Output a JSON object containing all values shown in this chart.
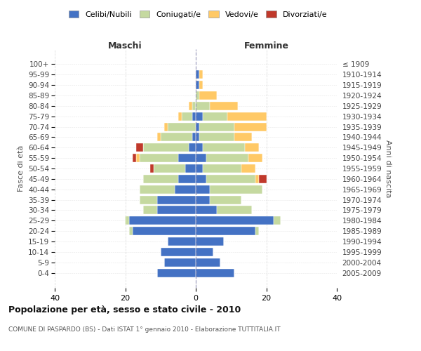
{
  "age_groups": [
    "0-4",
    "5-9",
    "10-14",
    "15-19",
    "20-24",
    "25-29",
    "30-34",
    "35-39",
    "40-44",
    "45-49",
    "50-54",
    "55-59",
    "60-64",
    "65-69",
    "70-74",
    "75-79",
    "80-84",
    "85-89",
    "90-94",
    "95-99",
    "100+"
  ],
  "birth_years": [
    "2005-2009",
    "2000-2004",
    "1995-1999",
    "1990-1994",
    "1985-1989",
    "1980-1984",
    "1975-1979",
    "1970-1974",
    "1965-1969",
    "1960-1964",
    "1955-1959",
    "1950-1954",
    "1945-1949",
    "1940-1944",
    "1935-1939",
    "1930-1934",
    "1925-1929",
    "1920-1924",
    "1915-1919",
    "1910-1914",
    "≤ 1909"
  ],
  "maschi": {
    "celibi": [
      11,
      9,
      10,
      8,
      18,
      19,
      11,
      11,
      6,
      5,
      3,
      5,
      2,
      1,
      0,
      1,
      0,
      0,
      0,
      0,
      0
    ],
    "coniugati": [
      0,
      0,
      0,
      0,
      1,
      1,
      4,
      5,
      10,
      10,
      9,
      11,
      13,
      9,
      8,
      3,
      1,
      0,
      0,
      0,
      0
    ],
    "vedovi": [
      0,
      0,
      0,
      0,
      0,
      0,
      0,
      0,
      0,
      0,
      0,
      1,
      0,
      1,
      1,
      1,
      1,
      0,
      0,
      0,
      0
    ],
    "divorziati": [
      0,
      0,
      0,
      0,
      0,
      0,
      0,
      0,
      0,
      0,
      1,
      1,
      2,
      0,
      0,
      0,
      0,
      0,
      0,
      0,
      0
    ]
  },
  "femmine": {
    "nubili": [
      11,
      7,
      5,
      8,
      17,
      22,
      6,
      4,
      4,
      3,
      2,
      3,
      2,
      1,
      1,
      2,
      0,
      0,
      1,
      1,
      0
    ],
    "coniugate": [
      0,
      0,
      0,
      0,
      1,
      2,
      10,
      9,
      15,
      14,
      11,
      12,
      12,
      10,
      10,
      7,
      4,
      1,
      0,
      0,
      0
    ],
    "vedove": [
      0,
      0,
      0,
      0,
      0,
      0,
      0,
      0,
      0,
      1,
      4,
      4,
      4,
      5,
      9,
      11,
      8,
      5,
      1,
      1,
      0
    ],
    "divorziate": [
      0,
      0,
      0,
      0,
      0,
      0,
      0,
      0,
      0,
      2,
      0,
      0,
      0,
      0,
      0,
      0,
      0,
      0,
      0,
      0,
      0
    ]
  },
  "colors": {
    "celibi": "#4472C4",
    "coniugati": "#c5d9a0",
    "vedovi": "#ffc966",
    "divorziati": "#c0392b"
  },
  "title": "Popolazione per età, sesso e stato civile - 2010",
  "subtitle": "COMUNE DI PASPARDO (BS) - Dati ISTAT 1° gennaio 2010 - Elaborazione TUTTITALIA.IT",
  "xlabel_left": "Maschi",
  "xlabel_right": "Femmine",
  "ylabel_left": "Fasce di età",
  "ylabel_right": "Anni di nascita",
  "xlim": 40,
  "legend_labels": [
    "Celibi/Nubili",
    "Coniugati/e",
    "Vedovi/e",
    "Divorziati/e"
  ],
  "bg_color": "#ffffff",
  "grid_color": "#cccccc"
}
